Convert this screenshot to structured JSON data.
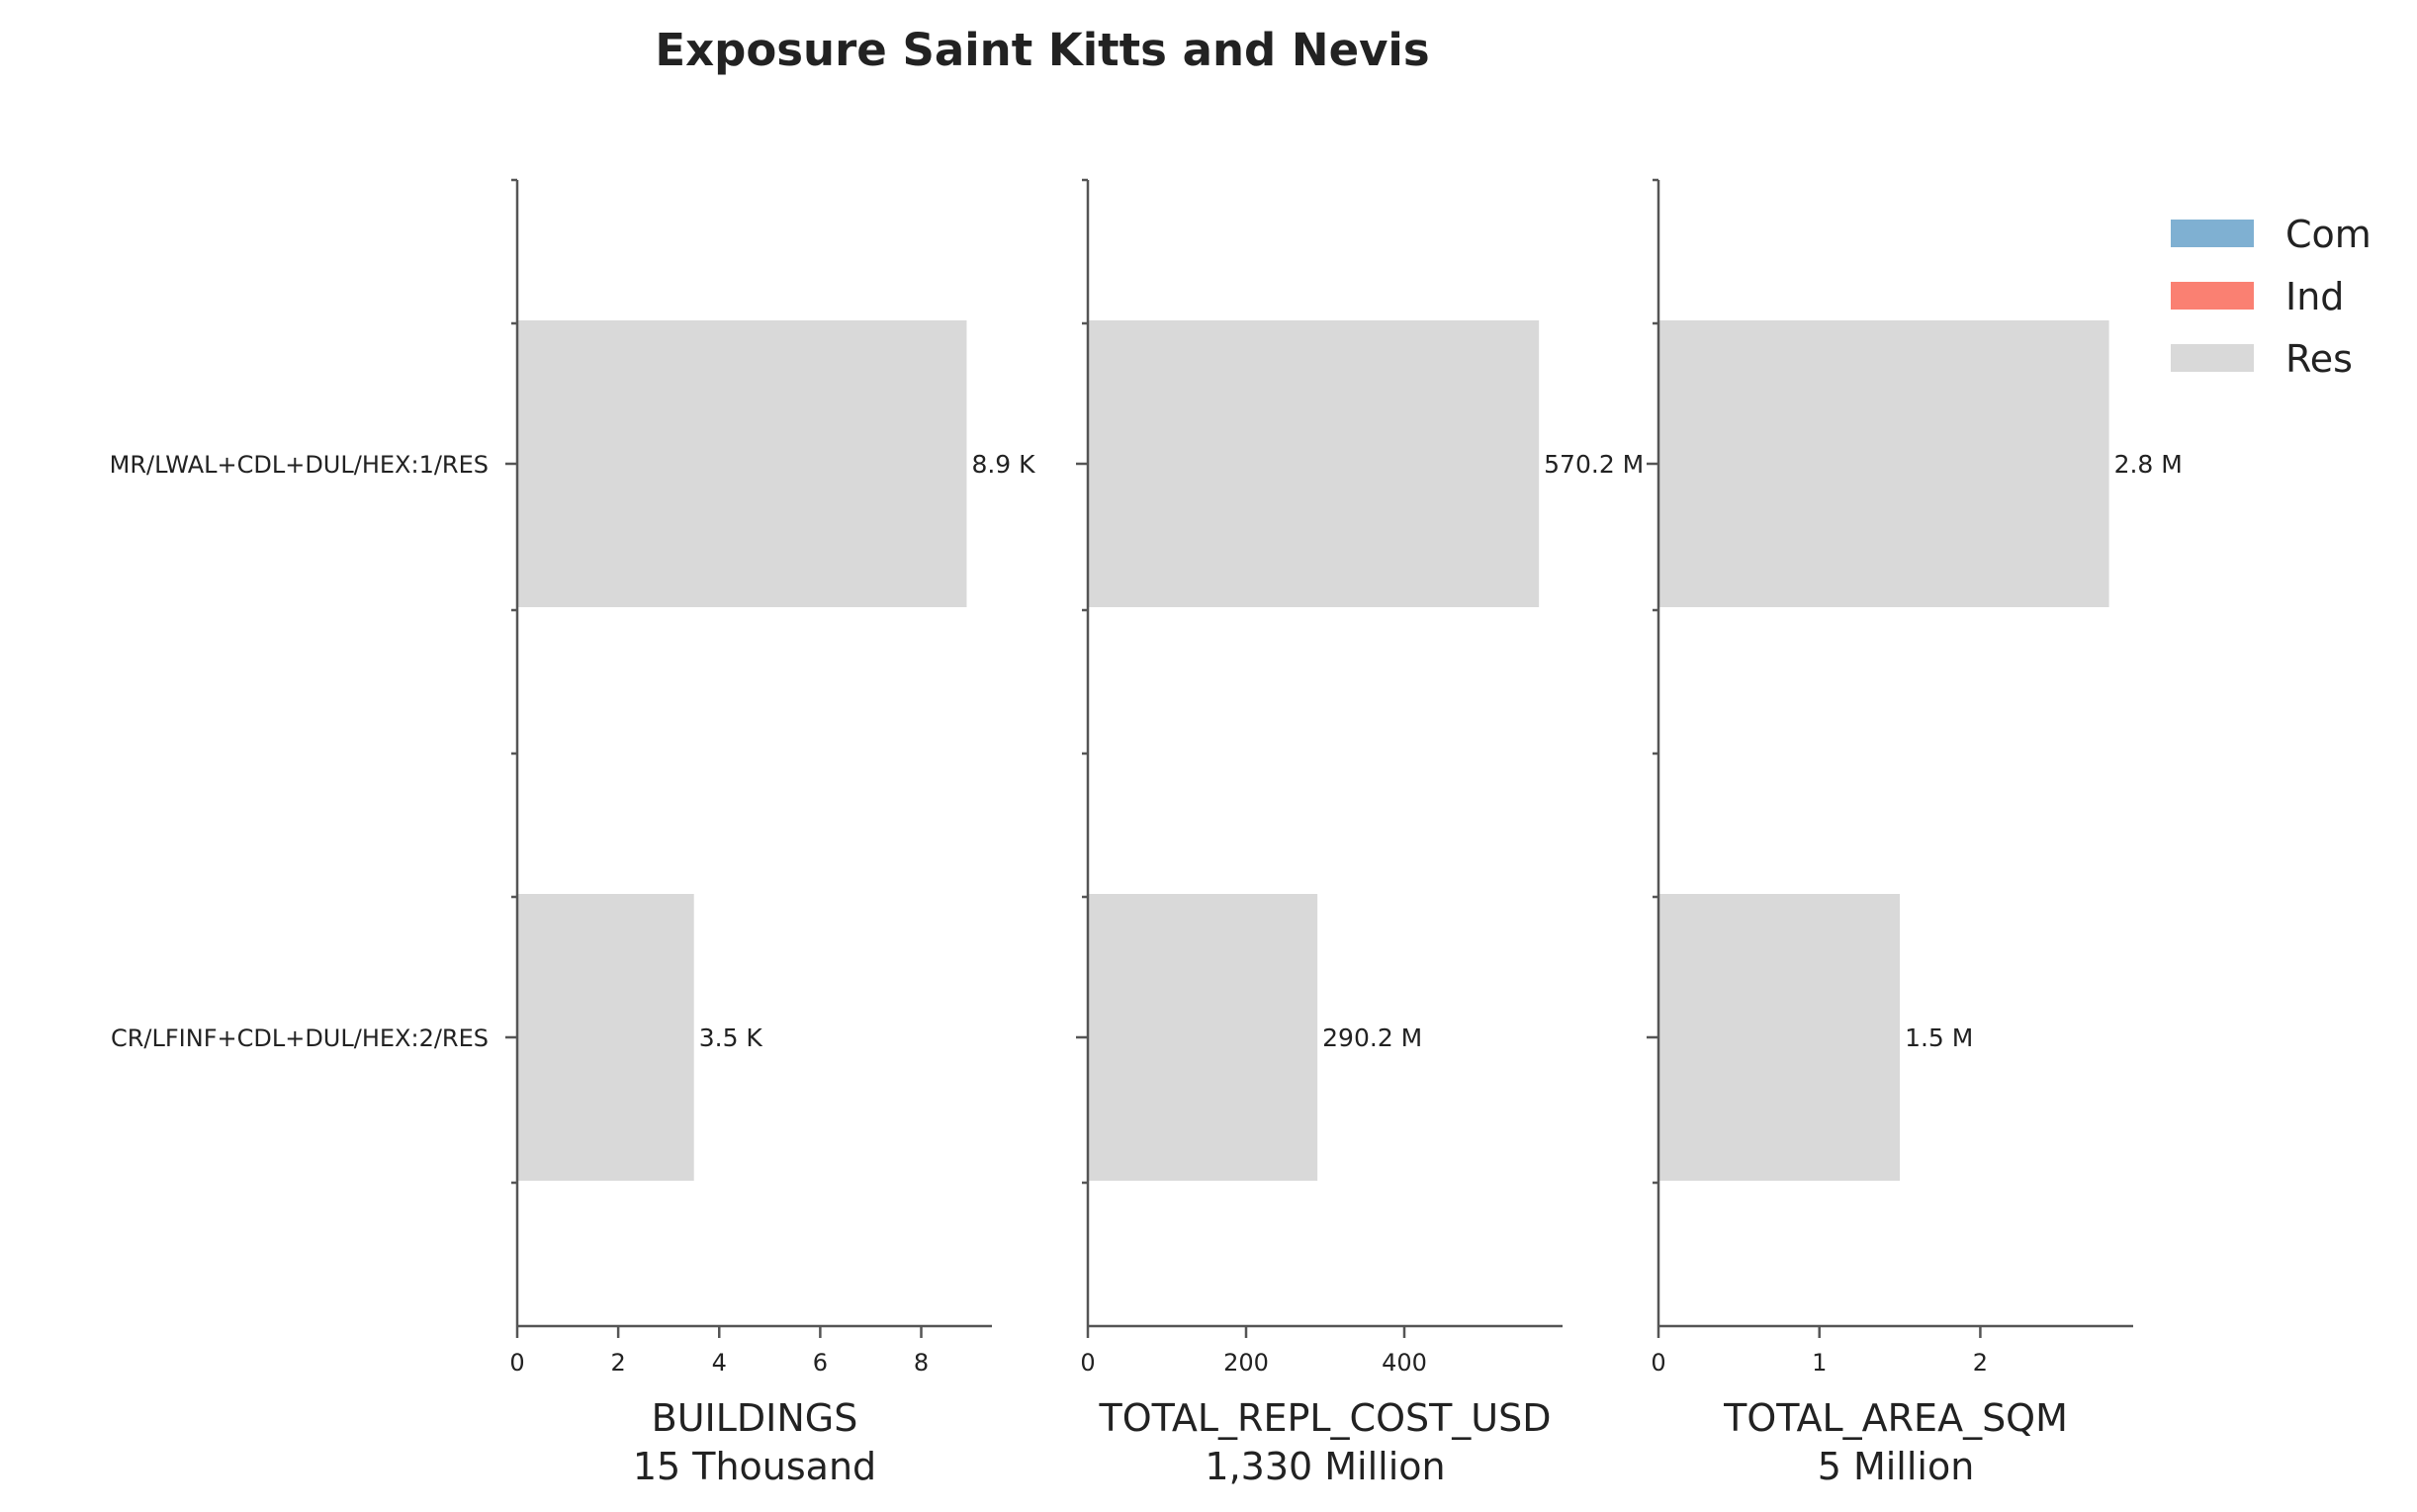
{
  "title": "Exposure Saint Kitts and Nevis",
  "legend": [
    {
      "name": "Com",
      "color": "#7fb0d2"
    },
    {
      "name": "Ind",
      "color": "#fa8072"
    },
    {
      "name": "Res",
      "color": "#d9d9d9"
    }
  ],
  "chart_data": [
    {
      "type": "bar",
      "orientation": "horizontal",
      "categories": [
        "MR/LWAL+CDL+DUL/HEX:1/RES",
        "CR/LFINF+CDL+DUL/HEX:2/RES"
      ],
      "series": [
        {
          "name": "Res",
          "values": [
            8.9,
            3.5
          ],
          "color": "#d9d9d9"
        }
      ],
      "value_labels": [
        "8.9 K",
        "3.5 K"
      ],
      "xlabel": "BUILDINGS",
      "xlabel_sub": "15 Thousand",
      "xlim": [
        0,
        9.4
      ],
      "xticks": [
        0,
        2,
        4,
        6,
        8
      ]
    },
    {
      "type": "bar",
      "orientation": "horizontal",
      "categories": [
        "MR/LWAL+CDL+DUL/HEX:1/RES",
        "CR/LFINF+CDL+DUL/HEX:2/RES"
      ],
      "series": [
        {
          "name": "Res",
          "values": [
            570.2,
            290.2
          ],
          "color": "#d9d9d9"
        }
      ],
      "value_labels": [
        "570.2 M",
        "290.2 M"
      ],
      "xlabel": "TOTAL_REPL_COST_USD",
      "xlabel_sub": "1,330 Million",
      "xlim": [
        0,
        600
      ],
      "xticks": [
        0,
        200,
        400
      ]
    },
    {
      "type": "bar",
      "orientation": "horizontal",
      "categories": [
        "MR/LWAL+CDL+DUL/HEX:1/RES",
        "CR/LFINF+CDL+DUL/HEX:2/RES"
      ],
      "series": [
        {
          "name": "Res",
          "values": [
            2.8,
            1.5
          ],
          "color": "#d9d9d9"
        }
      ],
      "value_labels": [
        "2.8 M",
        "1.5 M"
      ],
      "xlabel": "TOTAL_AREA_SQM",
      "xlabel_sub": "5 Million",
      "xlim": [
        0,
        2.95
      ],
      "xticks": [
        0,
        1,
        2
      ]
    }
  ]
}
